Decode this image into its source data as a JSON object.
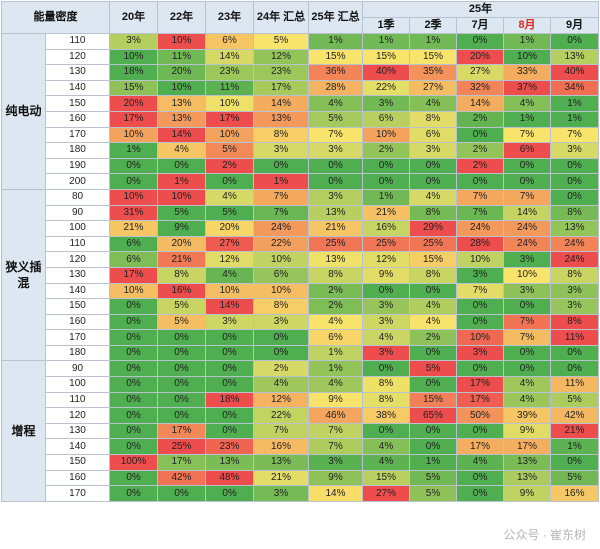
{
  "chart_data": {
    "type": "table",
    "title": "",
    "header": {
      "density_label": "能量密度",
      "cols_top": [
        "20年",
        "22年",
        "23年",
        "24年 汇总",
        "25年 汇总"
      ],
      "group_25": "25年",
      "cols_25": [
        "1季",
        "2季",
        "7月",
        "8月",
        "9月"
      ],
      "highlighted_col": "8月",
      "highlight_color": "#e0281c"
    },
    "groups": [
      {
        "name": "纯电动",
        "rows": [
          {
            "density": "110",
            "values": [
              "3%",
              "10%",
              "6%",
              "5%",
              "1%",
              "1%",
              "1%",
              "0%",
              "1%",
              "0%"
            ]
          },
          {
            "density": "120",
            "values": [
              "10%",
              "11%",
              "14%",
              "12%",
              "15%",
              "15%",
              "15%",
              "20%",
              "10%",
              "13%"
            ]
          },
          {
            "density": "130",
            "values": [
              "18%",
              "20%",
              "23%",
              "23%",
              "36%",
              "40%",
              "35%",
              "27%",
              "33%",
              "40%"
            ]
          },
          {
            "density": "140",
            "values": [
              "15%",
              "10%",
              "11%",
              "17%",
              "28%",
              "22%",
              "27%",
              "32%",
              "37%",
              "34%"
            ]
          },
          {
            "density": "150",
            "values": [
              "20%",
              "13%",
              "10%",
              "14%",
              "4%",
              "3%",
              "4%",
              "14%",
              "4%",
              "1%"
            ]
          },
          {
            "density": "160",
            "values": [
              "17%",
              "13%",
              "17%",
              "13%",
              "5%",
              "6%",
              "8%",
              "2%",
              "1%",
              "1%"
            ]
          },
          {
            "density": "170",
            "values": [
              "10%",
              "14%",
              "10%",
              "8%",
              "7%",
              "10%",
              "6%",
              "0%",
              "7%",
              "7%"
            ]
          },
          {
            "density": "180",
            "values": [
              "1%",
              "4%",
              "5%",
              "3%",
              "3%",
              "2%",
              "3%",
              "2%",
              "6%",
              "3%"
            ]
          },
          {
            "density": "190",
            "values": [
              "0%",
              "0%",
              "2%",
              "0%",
              "0%",
              "0%",
              "0%",
              "2%",
              "0%",
              "0%"
            ]
          },
          {
            "density": "200",
            "values": [
              "0%",
              "1%",
              "0%",
              "1%",
              "0%",
              "0%",
              "0%",
              "0%",
              "0%",
              "0%"
            ]
          }
        ]
      },
      {
        "name": "狭义插混",
        "rows": [
          {
            "density": "80",
            "values": [
              "10%",
              "10%",
              "4%",
              "7%",
              "3%",
              "1%",
              "4%",
              "7%",
              "7%",
              "0%"
            ]
          },
          {
            "density": "90",
            "values": [
              "31%",
              "5%",
              "5%",
              "7%",
              "13%",
              "21%",
              "8%",
              "7%",
              "14%",
              "8%"
            ]
          },
          {
            "density": "100",
            "values": [
              "21%",
              "9%",
              "20%",
              "24%",
              "21%",
              "16%",
              "29%",
              "24%",
              "24%",
              "13%"
            ]
          },
          {
            "density": "110",
            "values": [
              "6%",
              "20%",
              "27%",
              "22%",
              "25%",
              "25%",
              "25%",
              "28%",
              "24%",
              "24%"
            ]
          },
          {
            "density": "120",
            "values": [
              "6%",
              "21%",
              "12%",
              "10%",
              "13%",
              "12%",
              "15%",
              "10%",
              "3%",
              "24%"
            ]
          },
          {
            "density": "130",
            "values": [
              "17%",
              "8%",
              "4%",
              "6%",
              "8%",
              "9%",
              "8%",
              "3%",
              "10%",
              "8%"
            ]
          },
          {
            "density": "140",
            "values": [
              "10%",
              "16%",
              "10%",
              "10%",
              "2%",
              "0%",
              "0%",
              "7%",
              "3%",
              "3%"
            ]
          },
          {
            "density": "150",
            "values": [
              "0%",
              "5%",
              "14%",
              "8%",
              "2%",
              "3%",
              "4%",
              "0%",
              "0%",
              "3%"
            ]
          },
          {
            "density": "160",
            "values": [
              "0%",
              "5%",
              "3%",
              "3%",
              "4%",
              "3%",
              "4%",
              "0%",
              "7%",
              "8%"
            ]
          },
          {
            "density": "170",
            "values": [
              "0%",
              "0%",
              "0%",
              "0%",
              "6%",
              "4%",
              "2%",
              "10%",
              "7%",
              "11%"
            ]
          },
          {
            "density": "180",
            "values": [
              "0%",
              "0%",
              "0%",
              "0%",
              "1%",
              "3%",
              "0%",
              "3%",
              "0%",
              "0%"
            ]
          }
        ]
      },
      {
        "name": "增程",
        "rows": [
          {
            "density": "90",
            "values": [
              "0%",
              "0%",
              "0%",
              "2%",
              "1%",
              "0%",
              "5%",
              "0%",
              "0%",
              "0%"
            ]
          },
          {
            "density": "100",
            "values": [
              "0%",
              "0%",
              "0%",
              "4%",
              "4%",
              "8%",
              "0%",
              "17%",
              "4%",
              "11%"
            ]
          },
          {
            "density": "110",
            "values": [
              "0%",
              "0%",
              "18%",
              "12%",
              "9%",
              "8%",
              "15%",
              "17%",
              "4%",
              "5%"
            ]
          },
          {
            "density": "120",
            "values": [
              "0%",
              "0%",
              "0%",
              "22%",
              "46%",
              "38%",
              "65%",
              "50%",
              "39%",
              "42%"
            ]
          },
          {
            "density": "130",
            "values": [
              "0%",
              "17%",
              "0%",
              "7%",
              "7%",
              "0%",
              "0%",
              "0%",
              "9%",
              "21%"
            ]
          },
          {
            "density": "140",
            "values": [
              "0%",
              "25%",
              "23%",
              "16%",
              "7%",
              "4%",
              "0%",
              "17%",
              "17%",
              "1%"
            ]
          },
          {
            "density": "150",
            "values": [
              "100%",
              "17%",
              "13%",
              "13%",
              "3%",
              "4%",
              "1%",
              "4%",
              "13%",
              "0%"
            ]
          },
          {
            "density": "160",
            "values": [
              "0%",
              "42%",
              "48%",
              "21%",
              "9%",
              "15%",
              "5%",
              "0%",
              "13%",
              "5%"
            ]
          },
          {
            "density": "170",
            "values": [
              "0%",
              "0%",
              "0%",
              "3%",
              "14%",
              "27%",
              "5%",
              "0%",
              "9%",
              "16%"
            ]
          }
        ]
      }
    ],
    "color_scale": {
      "low": "#4fae4f",
      "mid": "#f8e46a",
      "high": "#ee4d4d"
    }
  },
  "watermark": "公众号 · 崔东树"
}
